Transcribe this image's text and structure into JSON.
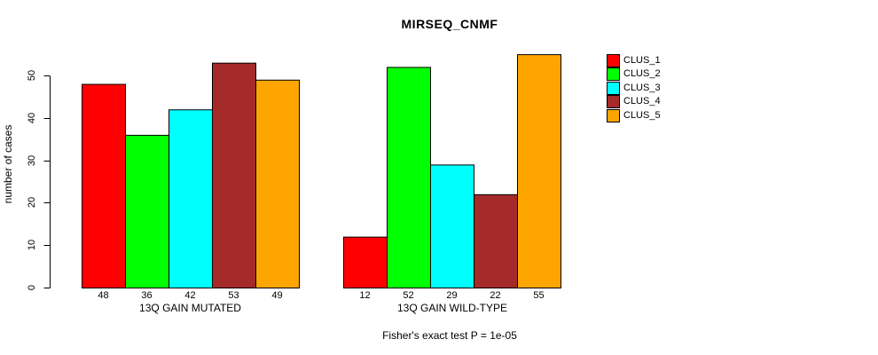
{
  "chart_data": {
    "type": "bar",
    "title": "MIRSEQ_CNMF",
    "ylabel": "number of cases",
    "xlabel": "",
    "ylim": [
      0,
      55
    ],
    "yticks": [
      0,
      10,
      20,
      30,
      40,
      50
    ],
    "grid": false,
    "legend_position": "right-outside-top",
    "categories": [
      "13Q GAIN MUTATED",
      "13Q GAIN WILD-TYPE"
    ],
    "series": [
      {
        "name": "CLUS_1",
        "color": "#FF0000",
        "values": [
          48,
          12
        ]
      },
      {
        "name": "CLUS_2",
        "color": "#00FF00",
        "values": [
          36,
          52
        ]
      },
      {
        "name": "CLUS_3",
        "color": "#00FFFF",
        "values": [
          42,
          29
        ]
      },
      {
        "name": "CLUS_4",
        "color": "#A52A2A",
        "values": [
          53,
          22
        ]
      },
      {
        "name": "CLUS_5",
        "color": "#FFA500",
        "values": [
          49,
          55
        ]
      }
    ],
    "bar_value_labels": [
      [
        48,
        36,
        42,
        53,
        49
      ],
      [
        12,
        52,
        29,
        22,
        55
      ]
    ],
    "show_bar_values": true,
    "annotation": "Fisher's exact test P = 1e-05",
    "axis_color": "#000000",
    "bar_border_color": "#000000",
    "background": "#FFFFFF"
  }
}
